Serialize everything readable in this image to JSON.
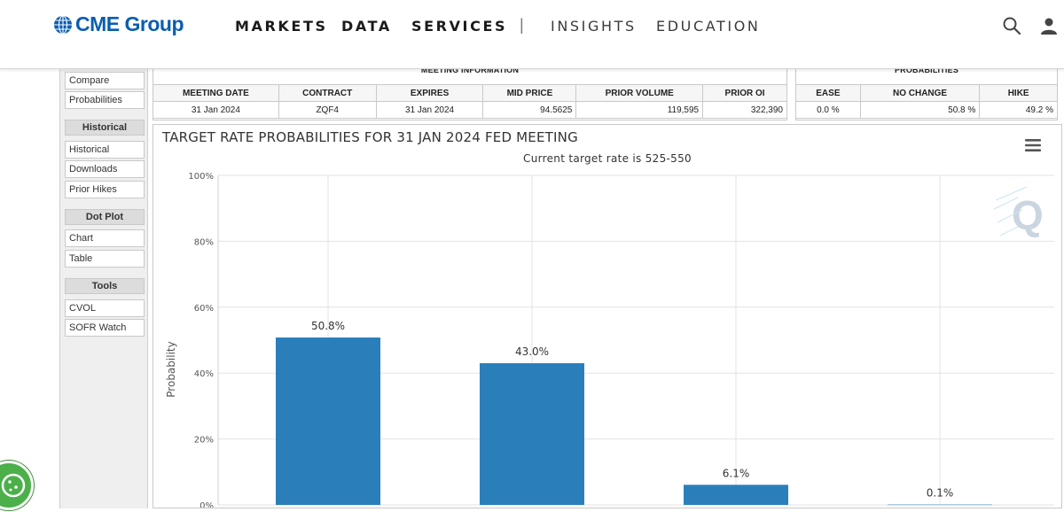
{
  "brand": {
    "name": "CME Group",
    "color": "#0a5eb0"
  },
  "nav": {
    "items": [
      {
        "label": "MARKETS"
      },
      {
        "label": "DATA"
      },
      {
        "label": "SERVICES"
      },
      {
        "label": "INSIGHTS"
      },
      {
        "label": "EDUCATION"
      }
    ],
    "separator": "|"
  },
  "sidebar": {
    "top_links": [
      "Compare",
      "Probabilities"
    ],
    "sections": [
      {
        "title": "Historical",
        "links": [
          "Historical",
          "Downloads",
          "Prior Hikes"
        ]
      },
      {
        "title": "Dot Plot",
        "links": [
          "Chart",
          "Table"
        ]
      },
      {
        "title": "Tools",
        "links": [
          "CVOL",
          "SOFR Watch"
        ]
      }
    ]
  },
  "meeting_info": {
    "title": "MEETING INFORMATION",
    "headers": [
      "MEETING DATE",
      "CONTRACT",
      "EXPIRES",
      "MID PRICE",
      "PRIOR VOLUME",
      "PRIOR OI"
    ],
    "row": [
      "31 Jan 2024",
      "ZQF4",
      "31 Jan 2024",
      "94.5625",
      "119,595",
      "322,390"
    ]
  },
  "probabilities": {
    "title": "PROBABILITIES",
    "headers": [
      "EASE",
      "NO CHANGE",
      "HIKE"
    ],
    "row": [
      "0.0 %",
      "50.8 %",
      "49.2 %"
    ]
  },
  "chart_data": {
    "type": "bar",
    "title": "TARGET RATE PROBABILITIES FOR 31 JAN 2024 FED MEETING",
    "subtitle": "Current target rate is 525-550",
    "ylabel": "Probability",
    "ylim": [
      0,
      100
    ],
    "yticks": [
      "0%",
      "20%",
      "40%",
      "60%",
      "80%",
      "100%"
    ],
    "values": [
      50.8,
      43.0,
      6.1,
      0.1
    ],
    "value_labels": [
      "50.8%",
      "43.0%",
      "6.1%",
      "0.1%"
    ],
    "bar_color": "#2a7fba",
    "grid": true
  },
  "icons": {
    "logo": "globe-icon",
    "search": "search-icon",
    "user": "user-icon",
    "menu": "hamburger-menu-icon",
    "watermark": "quikstrike-q-logo",
    "cookie": "cookie-icon"
  }
}
